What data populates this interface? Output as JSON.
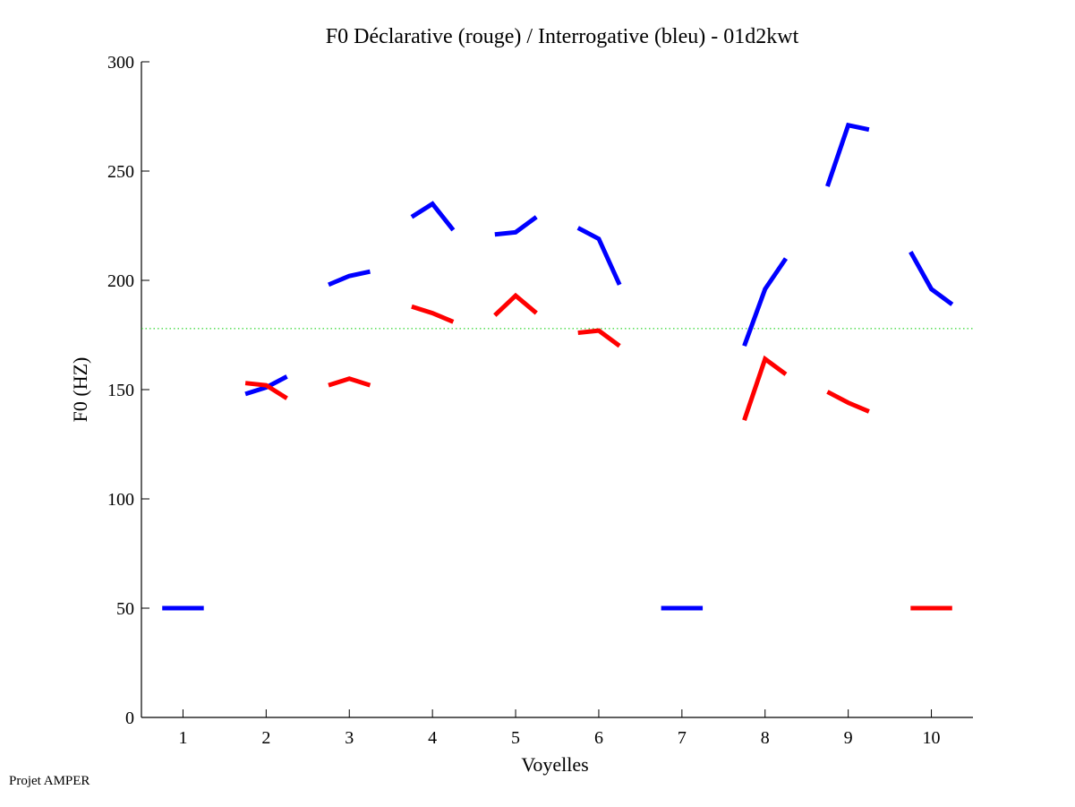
{
  "chart_data": {
    "type": "line",
    "title": "F0 Déclarative (rouge) / Interrogative (bleu) - 01d2kwt",
    "xlabel": "Voyelles",
    "ylabel": "F0 (HZ)",
    "xlim": [
      0.5,
      10.5
    ],
    "ylim": [
      0,
      300
    ],
    "xticks": [
      "1",
      "2",
      "3",
      "4",
      "5",
      "6",
      "7",
      "8",
      "9",
      "10"
    ],
    "yticks": [
      "0",
      "50",
      "100",
      "150",
      "200",
      "250",
      "300"
    ],
    "grid": false,
    "reference_line": {
      "value": 177.9,
      "color": "#00cc00",
      "style": "dotted"
    },
    "series": [
      {
        "name": "Interrogative (bleu)",
        "color": "#0000ff",
        "segments": [
          [
            50,
            50,
            50
          ],
          [
            148,
            151,
            156
          ],
          [
            198,
            202,
            204
          ],
          [
            229,
            235,
            223
          ],
          [
            221,
            222,
            229
          ],
          [
            224,
            219,
            198
          ],
          [
            50,
            50,
            50
          ],
          [
            170,
            196,
            210
          ],
          [
            243,
            271,
            269
          ],
          [
            213,
            196,
            189
          ]
        ]
      },
      {
        "name": "Déclarative (rouge)",
        "color": "#ff0000",
        "segments": [
          null,
          [
            153,
            152,
            146
          ],
          [
            152,
            155,
            152
          ],
          [
            188,
            185,
            181
          ],
          [
            184,
            193,
            185
          ],
          [
            176,
            177,
            170
          ],
          null,
          [
            136,
            164,
            157
          ],
          [
            149,
            144,
            140
          ],
          [
            50,
            50,
            50
          ]
        ]
      }
    ]
  },
  "footer": "Projet AMPER"
}
